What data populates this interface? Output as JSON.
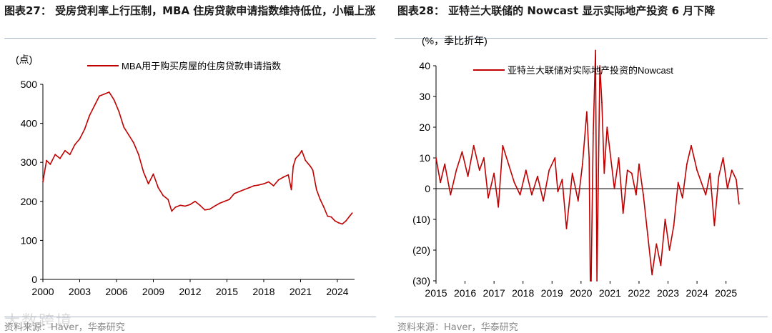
{
  "left_panel": {
    "title": "图表27： 受房贷利率上行压制，MBA 住房贷款申请指数维持低位，小幅上涨",
    "source": "资料来源：Haver，华泰研究"
  },
  "right_panel": {
    "title": "图表28： 亚特兰大联储的 Nowcast 显示实际地产投资 6 月下降",
    "source": "资料来源：Haver，华泰研究"
  },
  "watermark": "大数跨境",
  "colors": {
    "series": "#c00000",
    "axis": "#000000",
    "rule": "#a9b7c9"
  },
  "chart_data": [
    {
      "type": "line",
      "unit_label": "(点)",
      "ylim": [
        0,
        500
      ],
      "y_ticks": [
        0,
        100,
        200,
        300,
        400,
        500
      ],
      "x_ticks": [
        "2000",
        "2003",
        "2006",
        "2009",
        "2012",
        "2015",
        "2018",
        "2021",
        "2024"
      ],
      "xlim": [
        2000.0,
        2025.4
      ],
      "grid": false,
      "legend_position": "top",
      "series": [
        {
          "name": "MBA用于购买房屋的住房贷款申请指数",
          "x": [
            2000.0,
            2000.3,
            2000.6,
            2001.0,
            2001.4,
            2001.8,
            2002.2,
            2002.6,
            2003.0,
            2003.4,
            2003.8,
            2004.2,
            2004.6,
            2005.0,
            2005.4,
            2005.8,
            2006.2,
            2006.6,
            2007.0,
            2007.4,
            2007.8,
            2008.2,
            2008.6,
            2009.0,
            2009.4,
            2009.8,
            2010.2,
            2010.5,
            2010.8,
            2011.2,
            2011.6,
            2012.0,
            2012.4,
            2012.8,
            2013.2,
            2013.6,
            2014.0,
            2014.4,
            2014.8,
            2015.2,
            2015.6,
            2016.0,
            2016.4,
            2016.8,
            2017.2,
            2017.6,
            2018.0,
            2018.4,
            2018.8,
            2019.2,
            2019.6,
            2020.0,
            2020.25,
            2020.4,
            2020.6,
            2020.9,
            2021.1,
            2021.4,
            2021.8,
            2022.0,
            2022.3,
            2022.6,
            2022.9,
            2023.2,
            2023.5,
            2023.8,
            2024.1,
            2024.4,
            2024.7,
            2025.0,
            2025.2
          ],
          "values": [
            250,
            305,
            295,
            320,
            310,
            330,
            320,
            345,
            360,
            385,
            420,
            445,
            470,
            475,
            480,
            460,
            430,
            390,
            370,
            350,
            320,
            275,
            245,
            270,
            235,
            215,
            205,
            175,
            185,
            190,
            188,
            192,
            200,
            190,
            178,
            180,
            188,
            195,
            200,
            205,
            220,
            225,
            230,
            235,
            240,
            242,
            245,
            250,
            240,
            255,
            262,
            268,
            230,
            290,
            310,
            320,
            330,
            305,
            290,
            280,
            230,
            205,
            185,
            162,
            160,
            150,
            145,
            142,
            150,
            162,
            170
          ]
        }
      ]
    },
    {
      "type": "line",
      "unit_label": "(%，季比折年)",
      "ylim": [
        -30,
        40
      ],
      "y_ticks": [
        40,
        30,
        20,
        10,
        0,
        -10,
        -20,
        -30
      ],
      "y_tick_labels": [
        "40",
        "30",
        "20",
        "10",
        "0",
        "(10)",
        "(20)",
        "(30)"
      ],
      "x_ticks": [
        "2015",
        "2016",
        "2017",
        "2018",
        "2019",
        "2020",
        "2021",
        "2022",
        "2023",
        "2024",
        "2025"
      ],
      "xlim": [
        2015.0,
        2025.6
      ],
      "grid": false,
      "legend_position": "top",
      "series": [
        {
          "name": "亚特兰大联储对实际地产投资的Nowcast",
          "x": [
            2015.0,
            2015.15,
            2015.3,
            2015.5,
            2015.7,
            2015.9,
            2016.1,
            2016.3,
            2016.5,
            2016.65,
            2016.8,
            2017.0,
            2017.15,
            2017.3,
            2017.5,
            2017.7,
            2017.9,
            2018.1,
            2018.3,
            2018.5,
            2018.7,
            2018.9,
            2019.1,
            2019.2,
            2019.35,
            2019.5,
            2019.7,
            2019.9,
            2020.05,
            2020.2,
            2020.28,
            2020.32,
            2020.35,
            2020.42,
            2020.5,
            2020.55,
            2020.65,
            2020.72,
            2020.8,
            2020.9,
            2021.0,
            2021.15,
            2021.3,
            2021.45,
            2021.6,
            2021.75,
            2021.9,
            2022.0,
            2022.15,
            2022.3,
            2022.45,
            2022.6,
            2022.75,
            2022.9,
            2023.05,
            2023.2,
            2023.35,
            2023.5,
            2023.65,
            2023.8,
            2024.0,
            2024.15,
            2024.3,
            2024.45,
            2024.6,
            2024.75,
            2024.9,
            2025.05,
            2025.2,
            2025.35,
            2025.45
          ],
          "values": [
            10,
            2,
            8,
            -2,
            6,
            12,
            4,
            14,
            6,
            10,
            -3,
            5,
            -6,
            14,
            8,
            2,
            -2,
            6,
            -2,
            4,
            -4,
            6,
            10,
            -1,
            3,
            -13,
            5,
            -4,
            8,
            25,
            10,
            -30,
            -30,
            18,
            45,
            -30,
            40,
            28,
            5,
            20,
            12,
            0,
            10,
            -8,
            6,
            5,
            -2,
            8,
            -2,
            -15,
            -28,
            -18,
            -25,
            -10,
            -20,
            -12,
            2,
            -3,
            8,
            14,
            6,
            2,
            -2,
            5,
            -12,
            4,
            10,
            0,
            6,
            3,
            -5
          ]
        }
      ]
    }
  ]
}
